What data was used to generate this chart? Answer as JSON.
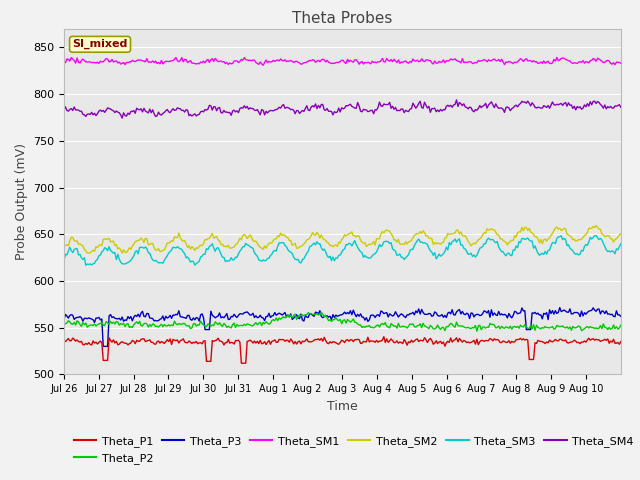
{
  "title": "Theta Probes",
  "xlabel": "Time",
  "ylabel": "Probe Output (mV)",
  "annotation_text": "SI_mixed",
  "annotation_bg": "#ffffcc",
  "annotation_border": "#999900",
  "annotation_fg": "#880000",
  "ylim": [
    500,
    870
  ],
  "yticks": [
    500,
    550,
    600,
    650,
    700,
    750,
    800,
    850
  ],
  "xtick_labels": [
    "Jul 26",
    "Jul 27",
    "Jul 28",
    "Jul 29",
    "Jul 30",
    "Jul 31",
    "Aug 1",
    "Aug 2",
    "Aug 3",
    "Aug 4",
    "Aug 5",
    "Aug 6",
    "Aug 7",
    "Aug 8",
    "Aug 9",
    "Aug 10"
  ],
  "plot_bg_color": "#e8e8e8",
  "fig_bg_color": "#f2f2f2",
  "colors": {
    "Theta_P1": "#dd0000",
    "Theta_P2": "#00cc00",
    "Theta_P3": "#0000cc",
    "Theta_SM1": "#ff00ff",
    "Theta_SM2": "#cccc00",
    "Theta_SM3": "#00cccc",
    "Theta_SM4": "#8800bb"
  },
  "linewidth": 1.0,
  "seed": 42,
  "n_days": 16,
  "pts_per_day": 24
}
